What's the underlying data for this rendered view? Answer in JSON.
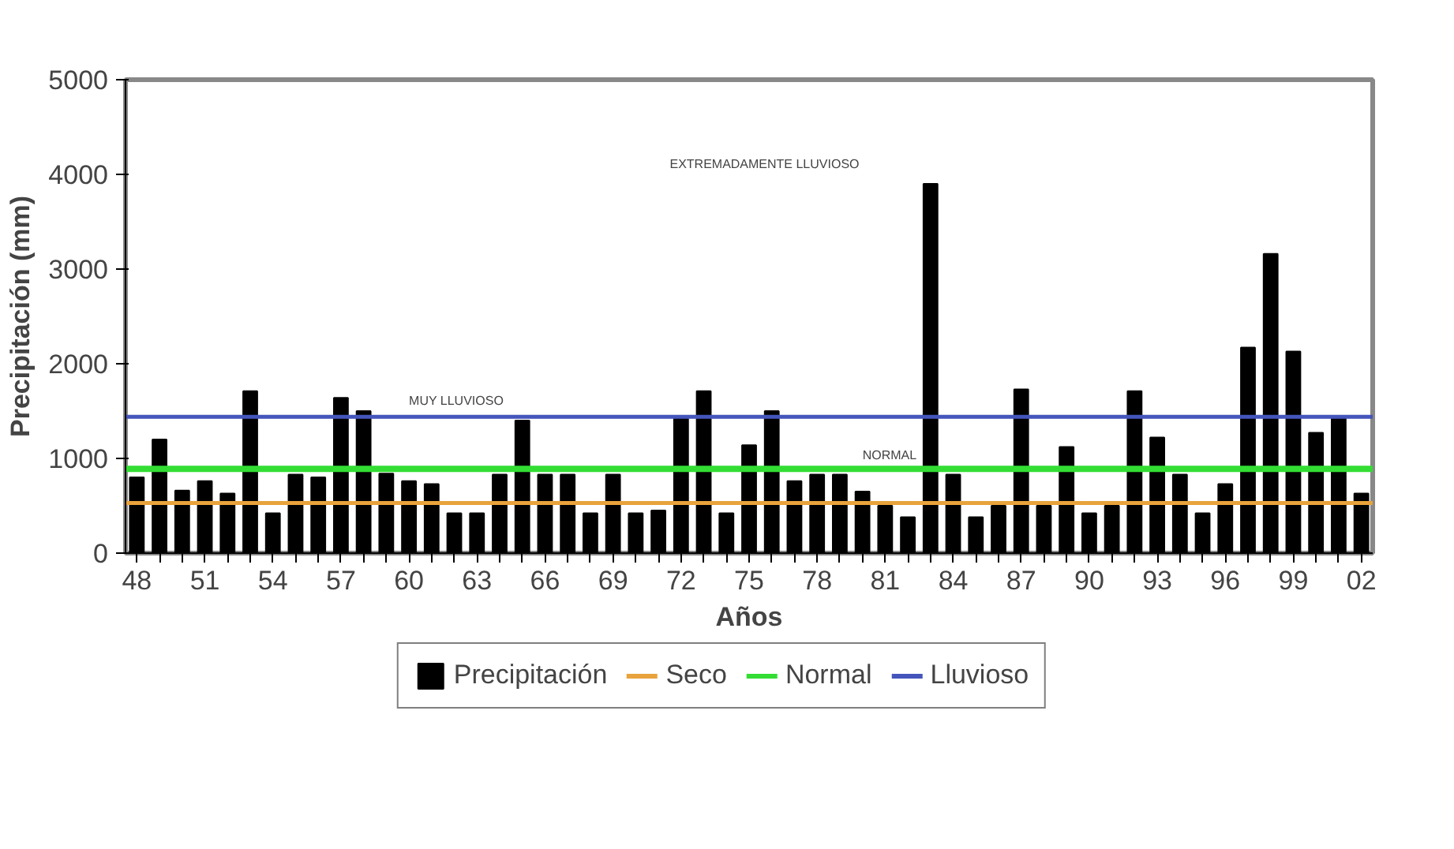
{
  "chart_data": {
    "type": "bar",
    "xlabel": "Años",
    "ylabel": "Precipitación (mm)",
    "categories": [
      "48",
      null,
      null,
      "51",
      null,
      null,
      "54",
      null,
      null,
      "57",
      null,
      null,
      "60",
      null,
      null,
      "63",
      null,
      null,
      "66",
      null,
      null,
      "69",
      null,
      null,
      "72",
      null,
      null,
      "75",
      null,
      null,
      "78",
      null,
      null,
      "81",
      null,
      null,
      "84",
      null,
      null,
      "87",
      null,
      null,
      "90",
      null,
      null,
      "93",
      null,
      null,
      "96",
      null,
      null,
      "99",
      null,
      null,
      "02"
    ],
    "series": [
      {
        "name": "Precipitación",
        "color": "#000000",
        "values": [
          800,
          1200,
          660,
          760,
          630,
          1710,
          420,
          830,
          800,
          1640,
          1500,
          840,
          760,
          730,
          420,
          420,
          830,
          1400,
          830,
          830,
          420,
          830,
          420,
          450,
          1420,
          1710,
          420,
          1140,
          1500,
          760,
          830,
          830,
          650,
          500,
          380,
          3900,
          830,
          380,
          500,
          1730,
          500,
          1120,
          420,
          500,
          1710,
          1220,
          830,
          420,
          730,
          2170,
          3160,
          2130,
          1270,
          1420,
          630
        ]
      }
    ],
    "ref_lines": [
      {
        "axis": "y",
        "value": 530,
        "label": "Seco",
        "color": "#e8a33c"
      },
      {
        "axis": "y",
        "value": 890,
        "label": "Normal",
        "color": "#33dd33"
      },
      {
        "axis": "y",
        "value": 1440,
        "label": "Lluvioso",
        "color": "#4455bb"
      }
    ],
    "annotations": [
      "MUY LLUVIOSO",
      "NORMAL",
      "EXTREMADAMENTE LLUVIOSO"
    ],
    "ylim": [
      0,
      5000
    ],
    "yticks": [
      0,
      1000,
      2000,
      3000,
      4000,
      5000
    ],
    "grid": false,
    "legend": "bottom"
  }
}
